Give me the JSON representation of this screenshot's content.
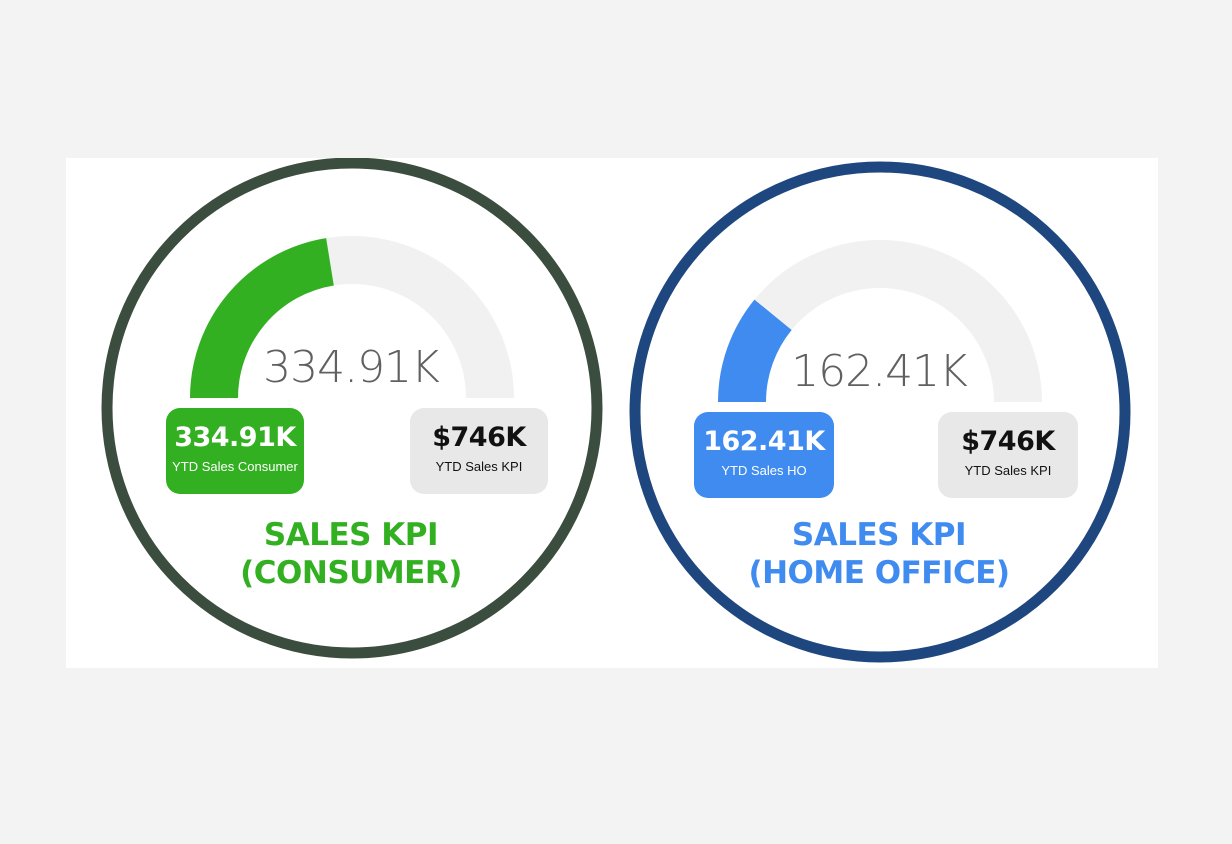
{
  "chart_data": [
    {
      "type": "gauge",
      "value": 334.91,
      "max": 746,
      "value_label": "334.91K",
      "colors": {
        "ring": "#3b4d3e",
        "fill": "#33b022",
        "track": "#f1f1f1",
        "text": "#33b022"
      },
      "tiles": {
        "actual": {
          "value": "334.91K",
          "label": "YTD Sales Consumer"
        },
        "kpi": {
          "value": "$746K",
          "label": "YTD Sales KPI"
        }
      },
      "title_line1": "SALES KPI",
      "title_line2": "(CONSUMER)"
    },
    {
      "type": "gauge",
      "value": 162.41,
      "max": 746,
      "value_label": "162.41K",
      "colors": {
        "ring": "#1f477f",
        "fill": "#3f8bf0",
        "track": "#f1f1f1",
        "text": "#3f8bf0"
      },
      "tiles": {
        "actual": {
          "value": "162.41K",
          "label": "YTD Sales HO"
        },
        "kpi": {
          "value": "$746K",
          "label": "YTD Sales KPI"
        }
      },
      "title_line1": "SALES KPI",
      "title_line2": "(HOME OFFICE)"
    }
  ]
}
